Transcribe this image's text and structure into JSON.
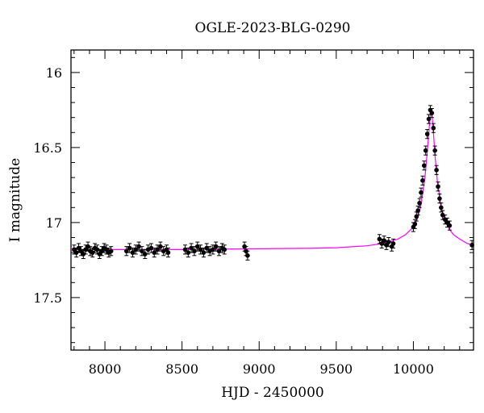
{
  "chart_data": {
    "type": "scatter",
    "title": "OGLE-2023-BLG-0290",
    "xlabel": "HJD - 2450000",
    "ylabel": "I magnitude",
    "xlim": [
      7780,
      10390
    ],
    "ylim": [
      17.85,
      15.85
    ],
    "y_inverted": true,
    "grid": false,
    "x_ticks": [
      8000,
      8500,
      9000,
      9500,
      10000
    ],
    "y_ticks": [
      16,
      16.5,
      17,
      17.5
    ],
    "x_tick_labels": [
      "8000",
      "8500",
      "9000",
      "9500",
      "10000"
    ],
    "y_tick_labels": [
      "16",
      "16.5",
      "17",
      "17.5"
    ],
    "colors": {
      "data": "#000000",
      "model": "#ff00ff"
    },
    "series": [
      {
        "kind": "observations",
        "error_bar": 0.03,
        "points": [
          [
            7800,
            17.18
          ],
          [
            7815,
            17.2
          ],
          [
            7830,
            17.17
          ],
          [
            7845,
            17.19
          ],
          [
            7860,
            17.21
          ],
          [
            7875,
            17.18
          ],
          [
            7890,
            17.16
          ],
          [
            7905,
            17.19
          ],
          [
            7920,
            17.2
          ],
          [
            7935,
            17.17
          ],
          [
            7950,
            17.18
          ],
          [
            7965,
            17.21
          ],
          [
            7980,
            17.19
          ],
          [
            7995,
            17.17
          ],
          [
            8010,
            17.18
          ],
          [
            8025,
            17.2
          ],
          [
            8040,
            17.19
          ],
          [
            8140,
            17.19
          ],
          [
            8160,
            17.17
          ],
          [
            8180,
            17.2
          ],
          [
            8200,
            17.18
          ],
          [
            8220,
            17.16
          ],
          [
            8240,
            17.19
          ],
          [
            8260,
            17.21
          ],
          [
            8280,
            17.18
          ],
          [
            8300,
            17.17
          ],
          [
            8320,
            17.2
          ],
          [
            8340,
            17.18
          ],
          [
            8360,
            17.16
          ],
          [
            8380,
            17.19
          ],
          [
            8400,
            17.18
          ],
          [
            8410,
            17.2
          ],
          [
            8520,
            17.18
          ],
          [
            8540,
            17.2
          ],
          [
            8560,
            17.17
          ],
          [
            8580,
            17.19
          ],
          [
            8600,
            17.16
          ],
          [
            8620,
            17.18
          ],
          [
            8640,
            17.2
          ],
          [
            8660,
            17.17
          ],
          [
            8680,
            17.19
          ],
          [
            8700,
            17.18
          ],
          [
            8720,
            17.16
          ],
          [
            8740,
            17.19
          ],
          [
            8760,
            17.17
          ],
          [
            8775,
            17.18
          ],
          [
            8905,
            17.16
          ],
          [
            8915,
            17.19
          ],
          [
            8925,
            17.22
          ],
          [
            9780,
            17.11
          ],
          [
            9795,
            17.14
          ],
          [
            9810,
            17.12
          ],
          [
            9825,
            17.15
          ],
          [
            9840,
            17.13
          ],
          [
            9860,
            17.16
          ],
          [
            9870,
            17.14
          ],
          [
            10000,
            17.03
          ],
          [
            10010,
            17.01
          ],
          [
            10020,
            16.96
          ],
          [
            10030,
            16.92
          ],
          [
            10040,
            16.87
          ],
          [
            10050,
            16.8
          ],
          [
            10060,
            16.72
          ],
          [
            10070,
            16.62
          ],
          [
            10080,
            16.52
          ],
          [
            10090,
            16.41
          ],
          [
            10100,
            16.31
          ],
          [
            10110,
            16.25
          ],
          [
            10120,
            16.27
          ],
          [
            10130,
            16.37
          ],
          [
            10140,
            16.52
          ],
          [
            10150,
            16.65
          ],
          [
            10160,
            16.76
          ],
          [
            10170,
            16.84
          ],
          [
            10180,
            16.9
          ],
          [
            10190,
            16.95
          ],
          [
            10205,
            16.98
          ],
          [
            10220,
            17.0
          ],
          [
            10235,
            17.02
          ],
          [
            10380,
            17.15
          ]
        ]
      },
      {
        "kind": "model",
        "baseline": 17.18,
        "t0": 10115,
        "peak": 16.25,
        "x": [
          7780,
          8000,
          8500,
          9000,
          9300,
          9500,
          9700,
          9800,
          9900,
          9950,
          10000,
          10025,
          10050,
          10075,
          10090,
          10100,
          10108,
          10115,
          10122,
          10130,
          10140,
          10155,
          10180,
          10205,
          10230,
          10260,
          10300,
          10350,
          10390
        ],
        "y": [
          17.18,
          17.18,
          17.18,
          17.175,
          17.172,
          17.168,
          17.155,
          17.14,
          17.11,
          17.08,
          17.03,
          16.98,
          16.88,
          16.7,
          16.53,
          16.4,
          16.3,
          16.25,
          16.3,
          16.4,
          16.55,
          16.72,
          16.9,
          16.99,
          17.04,
          17.08,
          17.11,
          17.14,
          17.15
        ]
      }
    ]
  }
}
